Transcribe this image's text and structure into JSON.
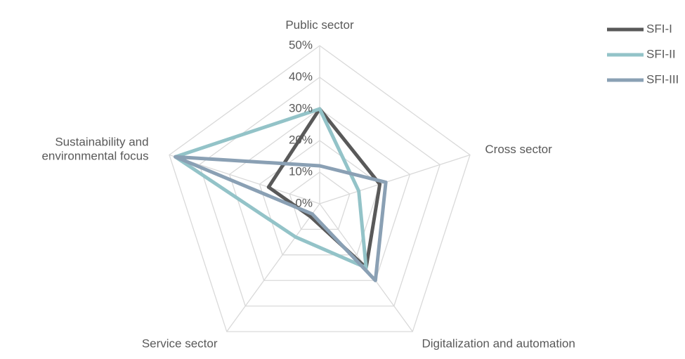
{
  "chart_data": {
    "type": "radar",
    "categories": [
      "Public sector",
      "Cross sector",
      "Digitalization and automation",
      "Service sector",
      "Sustainability and environmental focus"
    ],
    "series": [
      {
        "name": "SFI-I",
        "color": "#595959",
        "values": [
          30,
          20,
          25,
          5,
          17
        ]
      },
      {
        "name": "SFI-II",
        "color": "#93c3c8",
        "values": [
          30,
          13,
          25,
          13,
          48
        ]
      },
      {
        "name": "SFI-III",
        "color": "#8aa0b4",
        "values": [
          12,
          22,
          30,
          4,
          48
        ]
      }
    ],
    "ylim": [
      0,
      50
    ],
    "yticks": [
      {
        "value": 0,
        "label": "0%"
      },
      {
        "value": 10,
        "label": "10%"
      },
      {
        "value": 20,
        "label": "20%"
      },
      {
        "value": 30,
        "label": "30%"
      },
      {
        "value": 40,
        "label": "40%"
      },
      {
        "value": 50,
        "label": "50%"
      }
    ],
    "grid": true,
    "legend": "top-right"
  }
}
